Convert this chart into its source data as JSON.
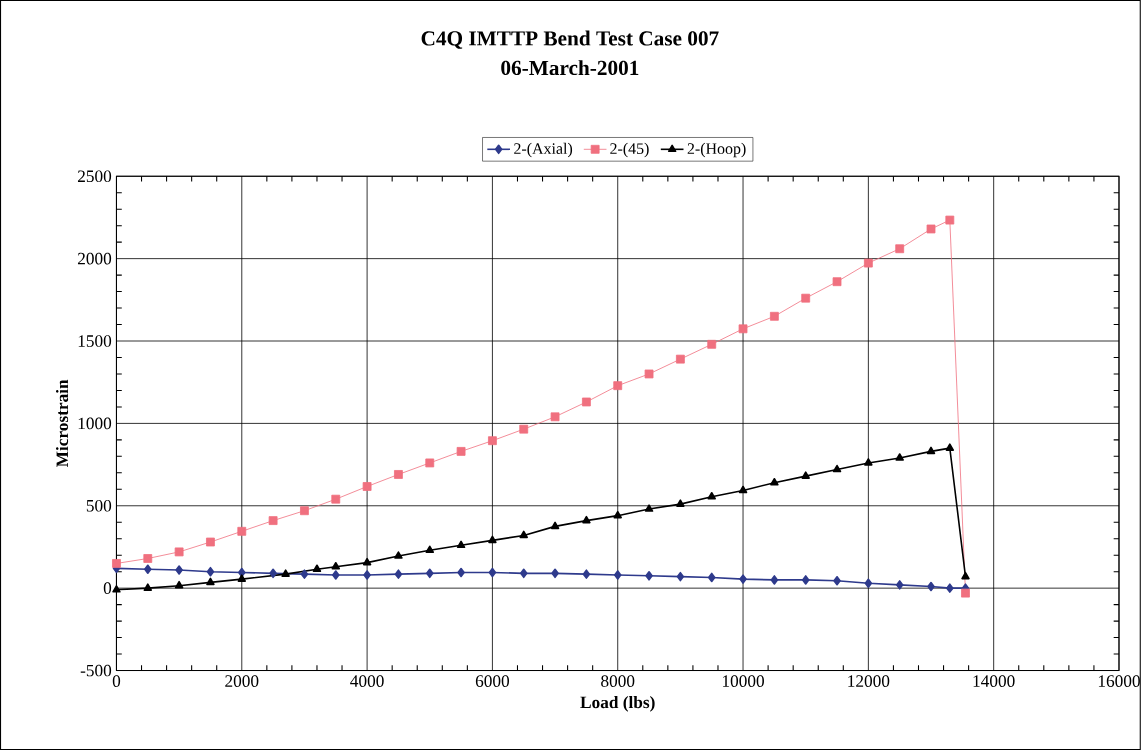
{
  "chart_data": {
    "type": "line",
    "title": "C4Q IMTTP Bend Test Case 007",
    "subtitle": "06-March-2001",
    "xlabel": "Load (lbs)",
    "ylabel": "Microstrain",
    "x": [
      0,
      500,
      1000,
      1500,
      2000,
      2500,
      3000,
      3500,
      4000,
      4500,
      5000,
      5500,
      6000,
      6500,
      7000,
      7500,
      8000,
      8500,
      9000,
      9500,
      10000,
      10500,
      11000,
      11500,
      12000,
      12500,
      13000,
      13300,
      13550
    ],
    "series": [
      {
        "name": "2-(Axial)",
        "color": "#2e3a8c",
        "marker": "diamond",
        "values": [
          120,
          115,
          110,
          100,
          95,
          90,
          85,
          80,
          80,
          85,
          90,
          95,
          95,
          90,
          90,
          85,
          80,
          75,
          70,
          65,
          55,
          50,
          50,
          45,
          30,
          20,
          10,
          0,
          0
        ]
      },
      {
        "name": "2-(45)",
        "color": "#f0707f",
        "marker": "square",
        "values": [
          150,
          180,
          220,
          280,
          345,
          410,
          470,
          540,
          617,
          690,
          760,
          830,
          895,
          965,
          1040,
          1130,
          1229,
          1300,
          1390,
          1480,
          1574,
          1650,
          1760,
          1860,
          1973,
          2060,
          2180,
          2234,
          -30
        ]
      },
      {
        "name": "2-(Hoop)",
        "color": "#000000",
        "marker": "triangle",
        "x": [
          0,
          500,
          1000,
          1500,
          2000,
          2700,
          3200,
          3500,
          4000,
          4500,
          5000,
          5500,
          6000,
          6500,
          7000,
          7500,
          8000,
          8500,
          9000,
          9500,
          10000,
          10500,
          11000,
          11500,
          12000,
          12500,
          13000,
          13300,
          13550
        ],
        "values": [
          -10,
          0,
          15,
          35,
          55,
          85,
          115,
          130,
          155,
          195,
          230,
          260,
          290,
          320,
          375,
          410,
          440,
          480,
          510,
          555,
          593,
          640,
          680,
          720,
          760,
          790,
          830,
          850,
          70
        ]
      }
    ],
    "xlim": [
      0,
      16000
    ],
    "xticks": [
      0,
      2000,
      4000,
      6000,
      8000,
      10000,
      12000,
      14000,
      16000
    ],
    "ylim": [
      -500,
      2500
    ],
    "yticks": [
      -500,
      0,
      500,
      1000,
      1500,
      2000,
      2500
    ],
    "grid": true,
    "legend": "top"
  }
}
